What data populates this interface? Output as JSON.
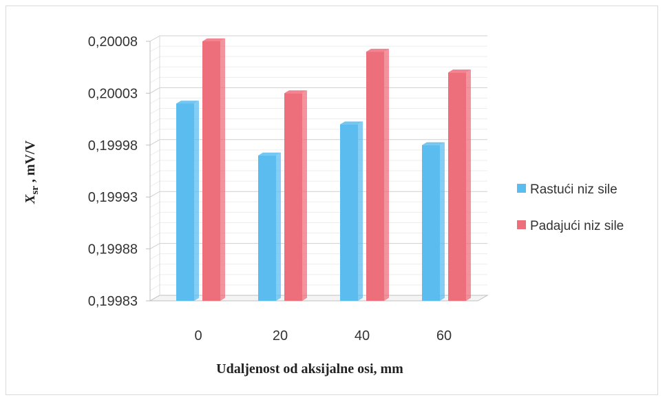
{
  "chart_data": {
    "type": "bar",
    "categories": [
      "0",
      "20",
      "40",
      "60"
    ],
    "series": [
      {
        "name": "Rastući niz sile",
        "values": [
          0.20002,
          0.19997,
          0.2,
          0.19998
        ],
        "color": "#5bbcf0"
      },
      {
        "name": "Padajući niz sile",
        "values": [
          0.20008,
          0.20003,
          0.20007,
          0.20005
        ],
        "color": "#ee6f7c"
      }
    ],
    "y_ticks": [
      "0,20008",
      "0,20003",
      "0,19998",
      "0,19993",
      "0,19988",
      "0,19983"
    ],
    "ylim": [
      0.19983,
      0.20008
    ],
    "xlabel": "Udaljenost od aksijalne osi, mm",
    "ylabel_main": "X",
    "ylabel_sub": "sr",
    "ylabel_rest": " ,  mV/V",
    "legend_position": "right",
    "grid": true
  }
}
